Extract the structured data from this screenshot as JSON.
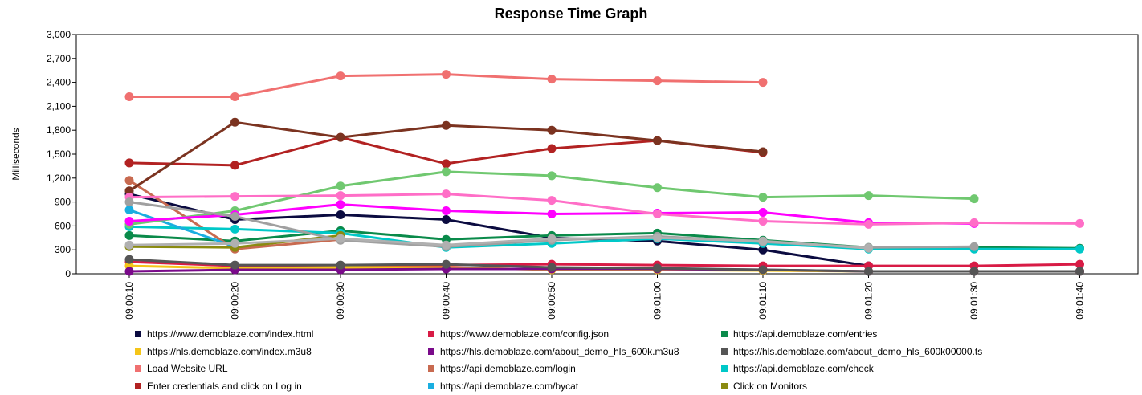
{
  "chart_data": {
    "type": "line",
    "title": "Response Time Graph",
    "xlabel": "",
    "ylabel": "Milliseconds",
    "ylim": [
      0,
      3000
    ],
    "yticks": [
      0,
      300,
      600,
      900,
      1200,
      1500,
      1800,
      2100,
      2400,
      2700,
      3000
    ],
    "ytick_labels": [
      "0",
      "300",
      "600",
      "900",
      "1,200",
      "1,500",
      "1,800",
      "2,100",
      "2,400",
      "2,700",
      "3,000"
    ],
    "x": [
      "09:00:10",
      "09:00:20",
      "09:00:30",
      "09:00:40",
      "09:00:50",
      "09:01:00",
      "09:01:10",
      "09:01:20",
      "09:01:30",
      "09:01:40"
    ],
    "grid": false,
    "legend_position": "bottom",
    "series": [
      {
        "name": "https://www.demoblaze.com/index.html",
        "color": "#0b0b40",
        "values": [
          1000,
          680,
          740,
          680,
          450,
          410,
          300,
          100,
          null,
          null
        ]
      },
      {
        "name": "https://www.demoblaze.com/config.json",
        "color": "#d81b45",
        "values": [
          150,
          100,
          100,
          110,
          120,
          110,
          100,
          100,
          100,
          120
        ]
      },
      {
        "name": "https://api.demoblaze.com/entries",
        "color": "#0a8a4a",
        "values": [
          480,
          410,
          540,
          430,
          480,
          510,
          420,
          330,
          330,
          320
        ]
      },
      {
        "name": "https://hls.demoblaze.com/index.m3u8",
        "color": "#f5c518",
        "values": [
          100,
          70,
          80,
          80,
          50,
          50,
          40,
          30,
          30,
          30
        ]
      },
      {
        "name": "https://hls.demoblaze.com/about_demo_hls_600k.m3u8",
        "color": "#7a0a8a",
        "values": [
          30,
          50,
          50,
          60,
          60,
          60,
          50,
          30,
          30,
          30
        ]
      },
      {
        "name": "https://hls.demoblaze.com/about_demo_hls_600k00000.ts",
        "color": "#555555",
        "values": [
          180,
          110,
          110,
          120,
          80,
          70,
          50,
          30,
          30,
          30
        ]
      },
      {
        "name": "Load Website URL",
        "color": "#f07070",
        "values": [
          2220,
          2220,
          2480,
          2500,
          2440,
          2420,
          2400,
          null,
          null,
          null
        ]
      },
      {
        "name": "https://api.demoblaze.com/login",
        "color": "#c86a50",
        "values": [
          1170,
          310,
          430,
          null,
          null,
          null,
          null,
          null,
          null,
          null
        ]
      },
      {
        "name": "https://api.demoblaze.com/check",
        "color": "#00c8c8",
        "values": [
          590,
          560,
          510,
          330,
          380,
          440,
          380,
          310,
          310,
          310
        ]
      },
      {
        "name": "Enter credentials and click on Log in",
        "color": "#b22222",
        "values": [
          1390,
          1360,
          1710,
          1380,
          1570,
          1670,
          1520,
          null,
          null,
          null
        ]
      },
      {
        "name": "https://api.demoblaze.com/bycat",
        "color": "#1aaee0",
        "values": [
          800,
          340,
          null,
          null,
          null,
          null,
          null,
          null,
          null,
          null
        ]
      },
      {
        "name": "Click on Monitors",
        "color": "#8a8a10",
        "values": [
          340,
          330,
          480,
          null,
          null,
          null,
          null,
          null,
          null,
          null
        ]
      },
      {
        "name": "",
        "color": "#7b3320",
        "values": [
          1040,
          1900,
          1710,
          1860,
          1800,
          1670,
          1530,
          null,
          null,
          null
        ]
      },
      {
        "name": "",
        "color": "#70c870",
        "values": [
          620,
          790,
          1100,
          1280,
          1230,
          1080,
          960,
          980,
          940,
          null
        ]
      },
      {
        "name": "",
        "color": "#ff00ff",
        "values": [
          660,
          740,
          870,
          790,
          750,
          760,
          770,
          640,
          630,
          null
        ]
      },
      {
        "name": "",
        "color": "#ff6ec7",
        "values": [
          960,
          970,
          980,
          1000,
          920,
          750,
          660,
          620,
          640,
          630
        ]
      },
      {
        "name": "",
        "color": "#a0a0a0",
        "values": [
          900,
          720,
          420,
          340,
          420,
          470,
          400,
          330,
          340,
          null
        ]
      },
      {
        "name": "",
        "color": "#b0b0b0",
        "values": [
          360,
          380,
          440,
          360,
          440,
          450,
          410,
          320,
          null,
          null
        ]
      }
    ]
  }
}
